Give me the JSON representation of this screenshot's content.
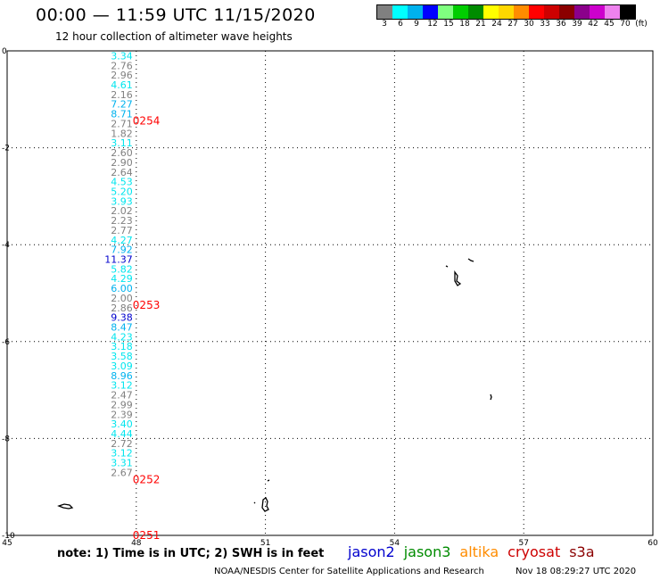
{
  "header": {
    "title": "00:00 — 11:59 UTC 11/15/2020",
    "subtitle": "12 hour collection of altimeter wave heights"
  },
  "legend": {
    "colors": [
      "#808080",
      "#00ffff",
      "#00b2ee",
      "#0000ff",
      "#7fff7f",
      "#00cd00",
      "#008b00",
      "#ffff00",
      "#ffd700",
      "#ff8c00",
      "#ff0000",
      "#cd0000",
      "#8b0000",
      "#8b008b",
      "#cd00cd",
      "#ee82ee",
      "#000000"
    ],
    "labels": [
      "3",
      "6",
      "9",
      "12",
      "15",
      "18",
      "21",
      "24",
      "27",
      "30",
      "33",
      "36",
      "39",
      "42",
      "45",
      "70",
      "(ft)"
    ]
  },
  "footer": {
    "note": "note: 1) Time is in UTC; 2) SWH is in feet",
    "satellites": [
      {
        "name": "jason2",
        "color": "#0000cd"
      },
      {
        "name": "jason3",
        "color": "#008b00"
      },
      {
        "name": "altika",
        "color": "#ff8c00"
      },
      {
        "name": "cryosat",
        "color": "#cd0000"
      },
      {
        "name": "s3a",
        "color": "#8b0000"
      }
    ],
    "credit": "NOAA/NESDIS Center for Satellite Applications and Research",
    "timestamp": "Nov 18 08:29:27 UTC 2020"
  },
  "chart_data": {
    "type": "scatter",
    "xlim": [
      45,
      60
    ],
    "ylim": [
      -10,
      0
    ],
    "xticks": [
      "45",
      "48",
      "51",
      "54",
      "57",
      "60"
    ],
    "yticks": [
      "0",
      "-2",
      "-4",
      "-6",
      "-8",
      "-10"
    ],
    "grid": true,
    "swh_track": {
      "lon": 48,
      "lat_start": -0.1,
      "lat_step": -0.2,
      "values": [
        3.34,
        2.76,
        2.96,
        4.61,
        2.16,
        7.27,
        8.71,
        2.71,
        1.82,
        3.11,
        2.6,
        2.9,
        2.64,
        4.53,
        5.2,
        3.93,
        2.02,
        2.23,
        2.77,
        4.27,
        7.92,
        11.37,
        5.82,
        4.29,
        6.0,
        2.0,
        2.86,
        9.38,
        8.47,
        4.23,
        3.18,
        3.58,
        3.09,
        8.96,
        3.12,
        2.47,
        2.99,
        2.39,
        3.4,
        4.44,
        2.72,
        3.12,
        3.31,
        2.67
      ]
    },
    "time_labels": [
      {
        "text": "0254",
        "lat": -1.45
      },
      {
        "text": "0253",
        "lat": -5.25
      },
      {
        "text": "0252",
        "lat": -8.85
      },
      {
        "text": "0251",
        "lat": -10.0
      }
    ],
    "time_label_color": "#ff0000"
  }
}
